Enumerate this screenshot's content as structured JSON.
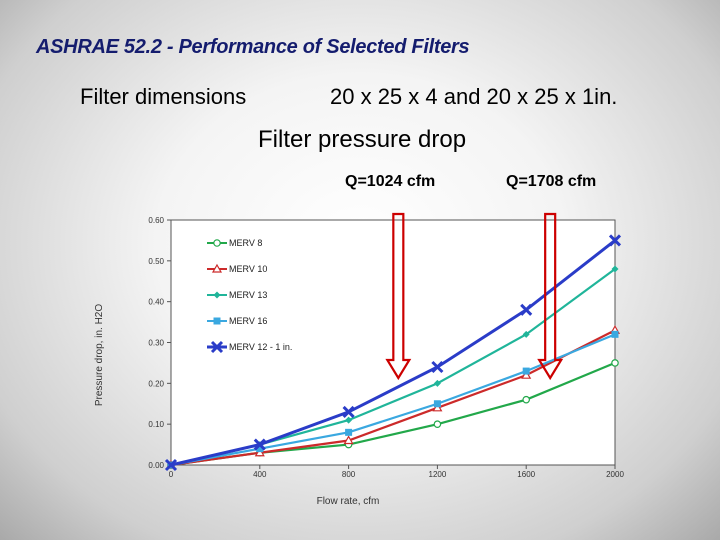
{
  "header": {
    "title": "ASHRAE 52.2 - Performance of Selected Filters",
    "dimensions_label": "Filter dimensions",
    "dimensions_value": "20 x 25 x 4  and 20 x 25 x 1in.",
    "subtitle": "Filter pressure drop"
  },
  "annotations": [
    {
      "label": "Q=1024 cfm",
      "x": 1024
    },
    {
      "label": "Q=1708 cfm",
      "x": 1708
    }
  ],
  "colors": {
    "arrow": "#cc0000"
  },
  "chart_data": {
    "type": "line",
    "xlabel": "Flow rate, cfm",
    "ylabel": "Pressure drop, in. H2O",
    "xlim": [
      0,
      2000
    ],
    "ylim": [
      0,
      0.6
    ],
    "x_ticks": [
      "0",
      "400",
      "800",
      "1200",
      "1600",
      "2000"
    ],
    "x_tick_values": [
      0,
      400,
      800,
      1200,
      1600,
      2000
    ],
    "y_ticks": [
      "0.00",
      "0.10",
      "0.20",
      "0.30",
      "0.40",
      "0.50",
      "0.60"
    ],
    "y_tick_values": [
      0,
      0.1,
      0.2,
      0.3,
      0.4,
      0.5,
      0.6
    ],
    "grid": false,
    "legend_position": "top-left",
    "series": [
      {
        "name": "MERV 8",
        "color": "#22a84a",
        "marker": "circle-open",
        "x": [
          0,
          400,
          800,
          1200,
          1600,
          2000
        ],
        "y": [
          0,
          0.03,
          0.05,
          0.1,
          0.16,
          0.25
        ]
      },
      {
        "name": "MERV 10",
        "color": "#cc2a2a",
        "marker": "triangle-open",
        "x": [
          0,
          400,
          800,
          1200,
          1600,
          2000
        ],
        "y": [
          0,
          0.03,
          0.06,
          0.14,
          0.22,
          0.33
        ]
      },
      {
        "name": "MERV 13",
        "color": "#20b59a",
        "marker": "diamond",
        "x": [
          0,
          400,
          800,
          1200,
          1600,
          2000
        ],
        "y": [
          0,
          0.05,
          0.11,
          0.2,
          0.32,
          0.48
        ]
      },
      {
        "name": "MERV 16",
        "color": "#3aa8e0",
        "marker": "square",
        "x": [
          0,
          400,
          800,
          1200,
          1600,
          2000
        ],
        "y": [
          0,
          0.04,
          0.08,
          0.15,
          0.23,
          0.32
        ]
      },
      {
        "name": "MERV 12 - 1 in.",
        "color": "#2a3cc8",
        "marker": "x",
        "x": [
          0,
          400,
          800,
          1200,
          1600,
          2000
        ],
        "y": [
          0,
          0.05,
          0.13,
          0.24,
          0.38,
          0.55
        ]
      }
    ]
  }
}
